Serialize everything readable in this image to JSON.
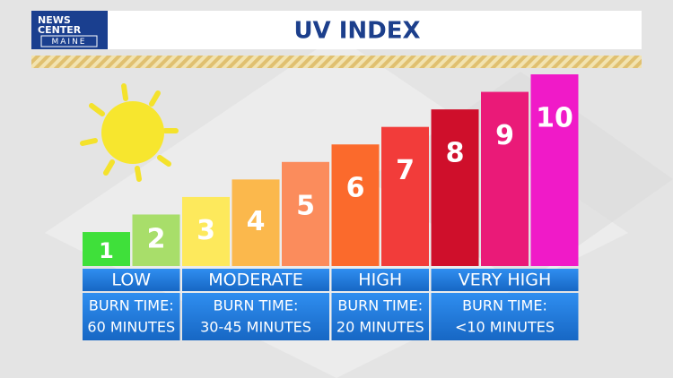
{
  "logo": {
    "line1": "NEWS",
    "line2": "CENTER",
    "line3": "MAINE"
  },
  "chart_data": {
    "type": "bar",
    "title": "UV INDEX",
    "values": [
      1,
      2,
      3,
      4,
      5,
      6,
      7,
      8,
      9,
      10
    ],
    "colors": [
      "#3fe03a",
      "#a8de6a",
      "#fde95c",
      "#fbb84c",
      "#fb8c5c",
      "#fb6a2c",
      "#f23c3a",
      "#cf0f2b",
      "#ea1a78",
      "#f01ac8"
    ],
    "groups": [
      {
        "label": "LOW",
        "burn_label": "BURN TIME:",
        "burn_time": "60 MINUTES"
      },
      {
        "label": "MODERATE",
        "burn_label": "BURN TIME:",
        "burn_time": "30-45 MINUTES"
      },
      {
        "label": "HIGH",
        "burn_label": "BURN TIME:",
        "burn_time": "20 MINUTES"
      },
      {
        "label": "VERY HIGH",
        "burn_label": "BURN TIME:",
        "burn_time": "<10 MINUTES"
      }
    ]
  }
}
